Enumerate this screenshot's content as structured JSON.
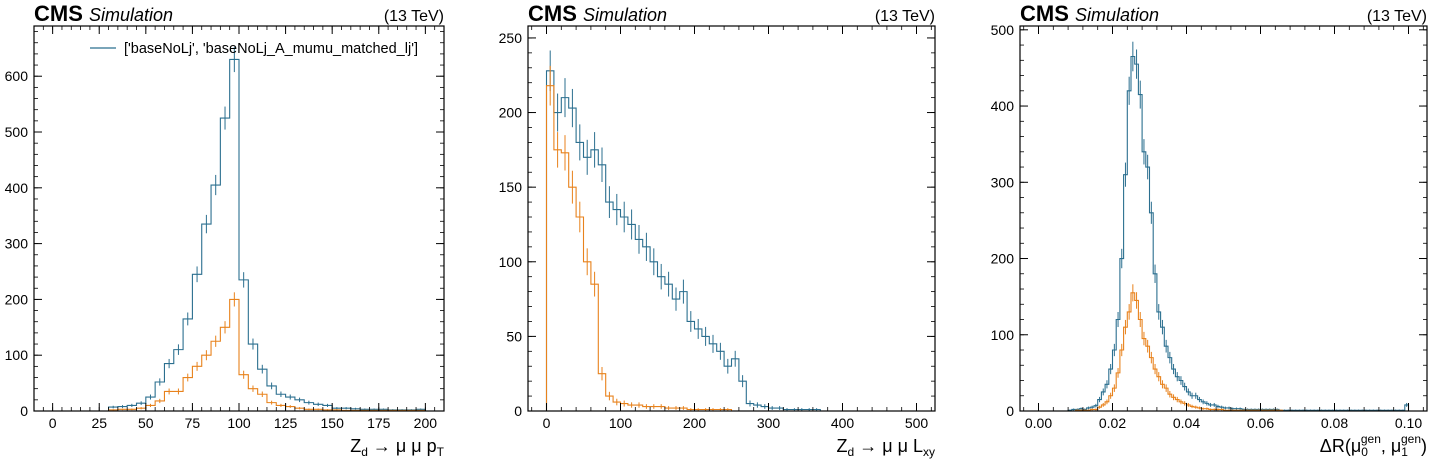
{
  "figure": {
    "experiment": "CMS",
    "status": "Simulation",
    "energy": "(13 TeV)"
  },
  "colors": {
    "series0": "#2b6f8f",
    "series1": "#e8821c"
  },
  "chart_data": [
    {
      "type": "histogram",
      "title": "",
      "xlabel_parts": [
        "Z",
        "d",
        " → μ μ p",
        "T"
      ],
      "ylabel": "",
      "xlim": [
        -10,
        210
      ],
      "ylim": [
        0,
        690
      ],
      "xticks": [
        0,
        25,
        50,
        75,
        100,
        125,
        150,
        175,
        200
      ],
      "yticks": [
        0,
        100,
        200,
        300,
        400,
        500,
        600
      ],
      "legend": {
        "position": "top-right",
        "entries": [
          "['baseNoLj', 'baseNoLj_A_mumu_matched_lj']"
        ]
      },
      "bins": {
        "start": 0,
        "width": 5
      },
      "series": [
        {
          "name": "['baseNoLj', 'baseNoLj_A_mumu_matched_lj']",
          "color": "#2b6f8f",
          "values": [
            0,
            0,
            0,
            0,
            0,
            0,
            7,
            8,
            10,
            14,
            25,
            52,
            85,
            110,
            165,
            245,
            335,
            405,
            525,
            630,
            235,
            120,
            75,
            45,
            30,
            25,
            20,
            15,
            12,
            10,
            5,
            5,
            4,
            3,
            3,
            3,
            2,
            2,
            2,
            3
          ]
        },
        {
          "name": "",
          "color": "#e8821c",
          "values": [
            0,
            0,
            0,
            0,
            0,
            0,
            2,
            3,
            3,
            5,
            10,
            18,
            35,
            35,
            60,
            80,
            100,
            125,
            150,
            200,
            65,
            40,
            30,
            15,
            10,
            8,
            5,
            3,
            3,
            2,
            2,
            1,
            1,
            1,
            1,
            1,
            1,
            1,
            1,
            1
          ]
        }
      ]
    },
    {
      "type": "histogram",
      "title": "",
      "xlabel_parts": [
        "Z",
        "d",
        " → μ μ L",
        "xy"
      ],
      "ylabel": "",
      "xlim": [
        -25,
        525
      ],
      "ylim": [
        0,
        258
      ],
      "xticks": [
        0,
        100,
        200,
        300,
        400,
        500
      ],
      "yticks": [
        0,
        50,
        100,
        150,
        200,
        250
      ],
      "legend": null,
      "bins": {
        "start": 0,
        "width": 10
      },
      "series": [
        {
          "name": "",
          "color": "#2b6f8f",
          "values": [
            228,
            200,
            210,
            203,
            180,
            170,
            175,
            165,
            140,
            135,
            130,
            125,
            115,
            110,
            100,
            90,
            85,
            75,
            80,
            60,
            55,
            50,
            45,
            40,
            30,
            35,
            20,
            5,
            4,
            3,
            2,
            2,
            1,
            1,
            1,
            1,
            1,
            0,
            0,
            0,
            0,
            0,
            0,
            0,
            0,
            0,
            0,
            0,
            0,
            0
          ]
        },
        {
          "name": "",
          "color": "#e8821c",
          "values": [
            218,
            175,
            173,
            150,
            130,
            100,
            85,
            25,
            10,
            6,
            5,
            4,
            4,
            3,
            3,
            3,
            2,
            2,
            2,
            1,
            1,
            1,
            1,
            1,
            1,
            0,
            0,
            0,
            0,
            0,
            0,
            0,
            0,
            0,
            0,
            0,
            0,
            0,
            0,
            0,
            0,
            0,
            0,
            0,
            0,
            0,
            0,
            0,
            0,
            0
          ]
        }
      ]
    },
    {
      "type": "histogram",
      "title": "",
      "xlabel_parts": [
        "ΔR(μ",
        "0",
        "gen",
        ", μ",
        "1",
        "gen",
        ")"
      ],
      "ylabel": "",
      "xlim": [
        -0.005,
        0.105
      ],
      "ylim": [
        0,
        505
      ],
      "xticks": [
        0.0,
        0.02,
        0.04,
        0.06,
        0.08,
        0.1
      ],
      "xticklabels": [
        "0.00",
        "0.02",
        "0.04",
        "0.06",
        "0.08",
        "0.10"
      ],
      "yticks": [
        0,
        100,
        200,
        300,
        400,
        500
      ],
      "legend": null,
      "bins": {
        "start": 0,
        "width": 0.001
      },
      "series": [
        {
          "name": "",
          "color": "#2b6f8f",
          "values": [
            0,
            0,
            0,
            0,
            0,
            0,
            0,
            0,
            1,
            2,
            2,
            3,
            2,
            4,
            5,
            7,
            15,
            25,
            35,
            55,
            80,
            120,
            200,
            310,
            420,
            465,
            455,
            415,
            340,
            320,
            260,
            180,
            130,
            110,
            85,
            70,
            55,
            45,
            40,
            32,
            25,
            20,
            20,
            15,
            12,
            10,
            8,
            8,
            6,
            5,
            4,
            4,
            3,
            3,
            3,
            2,
            2,
            2,
            2,
            2,
            2,
            2,
            2,
            2,
            2,
            1,
            1,
            1,
            1,
            1,
            1,
            1,
            1,
            1,
            1,
            1,
            1,
            1,
            1,
            1,
            1,
            1,
            1,
            1,
            1,
            1,
            1,
            1,
            1,
            1,
            1,
            1,
            1,
            1,
            1,
            1,
            1,
            1,
            1,
            8
          ]
        },
        {
          "name": "",
          "color": "#e8821c",
          "values": [
            0,
            0,
            0,
            0,
            0,
            0,
            0,
            0,
            0,
            0,
            1,
            1,
            1,
            1,
            2,
            2,
            5,
            8,
            12,
            20,
            30,
            50,
            80,
            110,
            130,
            155,
            145,
            120,
            95,
            85,
            70,
            55,
            45,
            35,
            30,
            22,
            18,
            15,
            12,
            10,
            8,
            6,
            5,
            4,
            3,
            3,
            2,
            2,
            2,
            2,
            1,
            1,
            1,
            1,
            1,
            1,
            1,
            1,
            1,
            1,
            1,
            1,
            1,
            1,
            1,
            1,
            0,
            0,
            0,
            0,
            0,
            0,
            0,
            0,
            0,
            0,
            0,
            0,
            0,
            0,
            0,
            0,
            0,
            0,
            0,
            0,
            0,
            0,
            0,
            0,
            0,
            0,
            0,
            0,
            0,
            0,
            0,
            0,
            0,
            0
          ]
        }
      ]
    }
  ]
}
